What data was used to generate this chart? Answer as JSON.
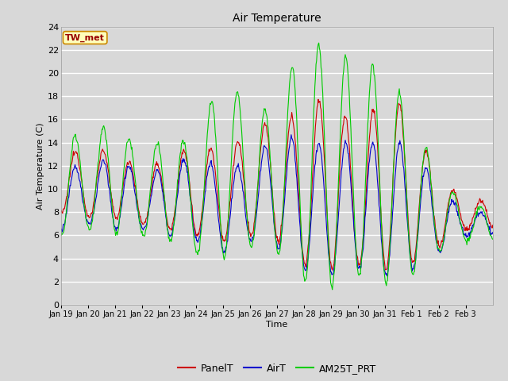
{
  "title": "Air Temperature",
  "ylabel": "Air Temperature (C)",
  "xlabel": "Time",
  "ylim": [
    0,
    24
  ],
  "yticks": [
    0,
    2,
    4,
    6,
    8,
    10,
    12,
    14,
    16,
    18,
    20,
    22,
    24
  ],
  "background_color": "#d8d8d8",
  "plot_bg_color": "#d8d8d8",
  "legend_bg": "#ffffff",
  "grid_color": "#ffffff",
  "series_colors": {
    "PanelT": "#cc0000",
    "AirT": "#0000cc",
    "AM25T_PRT": "#00cc00"
  },
  "legend_labels": [
    "PanelT",
    "AirT",
    "AM25T_PRT"
  ],
  "station_label": "TW_met",
  "station_label_color": "#990000",
  "station_label_bg": "#ffffbb",
  "station_label_border": "#cc8800",
  "x_tick_labels": [
    "Jan 19",
    "Jan 20",
    "Jan 21",
    "Jan 22",
    "Jan 23",
    "Jan 24",
    "Jan 25",
    "Jan 26",
    "Jan 27",
    "Jan 28",
    "Jan 29",
    "Jan 30",
    "Jan 31",
    "Feb 1",
    "Feb 2",
    "Feb 3"
  ],
  "num_days": 16
}
